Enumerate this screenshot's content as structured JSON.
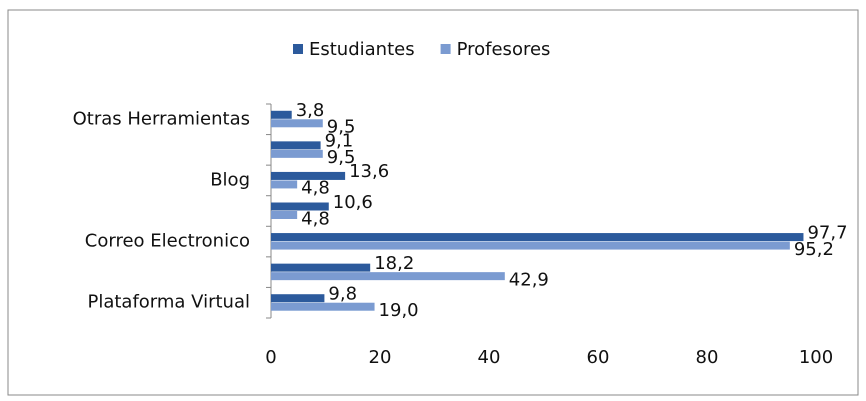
{
  "chart_data": {
    "type": "hbar",
    "categories": [
      "Plataforma Virtual",
      null,
      "Correo Electronico",
      null,
      "Blog",
      null,
      "Otras Herramientas"
    ],
    "series": [
      {
        "name": "Estudiantes",
        "color": "#2c5a9c",
        "values": [
          9.8,
          18.2,
          97.7,
          10.6,
          13.6,
          9.1,
          3.8
        ],
        "value_labels": [
          "9,8",
          "18,2",
          "97,7",
          "10,6",
          "13,6",
          "9,1",
          "3,8"
        ]
      },
      {
        "name": "Profesores",
        "color": "#7b9bd1",
        "values": [
          19.0,
          42.9,
          95.2,
          4.8,
          4.8,
          9.5,
          9.5
        ],
        "value_labels": [
          "19,0",
          "42,9",
          "95,2",
          "4,8",
          "4,8",
          "9,5",
          "9,5"
        ]
      }
    ],
    "xlim": [
      0,
      100
    ],
    "xticks": [
      0,
      20,
      40,
      60,
      80,
      100
    ],
    "grid": false,
    "legend": "top"
  }
}
